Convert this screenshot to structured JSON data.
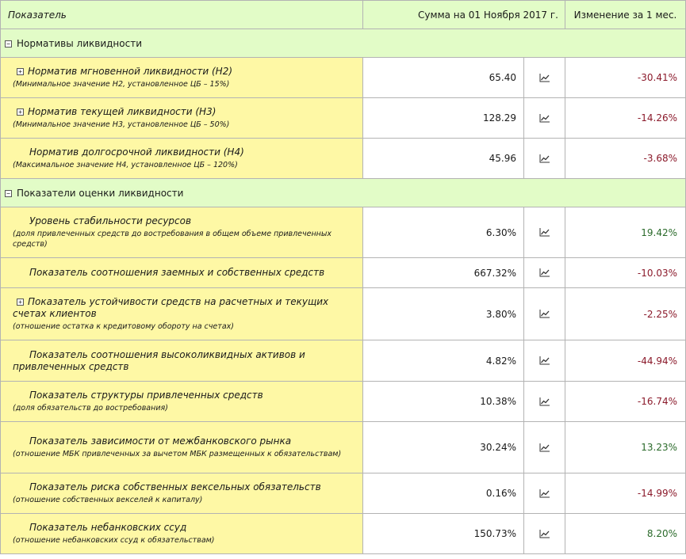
{
  "header": {
    "indicator": "Показатель",
    "sum": "Сумма на 01 Ноября 2017 г.",
    "change": "Изменение за 1 мес."
  },
  "sections": [
    {
      "title": "Нормативы ликвидности",
      "toggle": "⊟",
      "rows": [
        {
          "title": "Норматив мгновенной ликвидности (Н2)",
          "note": "(Минимальное значение Н2, установленное ЦБ – 15%)",
          "value": "65.40",
          "change": "-30.41%"
        },
        {
          "title": "Норматив текущей ликвидности (Н3)",
          "note": "(Минимальное значение Н3, установленное ЦБ – 50%)",
          "value": "128.29",
          "change": "-14.26%"
        },
        {
          "title": "Норматив долгосрочной ликвидности (Н4)",
          "note": "(Максимальное значение Н4, установленное ЦБ – 120%)",
          "value": "45.96",
          "change": "-3.68%"
        }
      ]
    },
    {
      "title": "Показатели оценки ликвидности",
      "toggle": "⊟",
      "rows": [
        {
          "title": "Уровень стабильности ресурсов",
          "note": "(доля привлеченных средств до востребования в общем объеме привлеченных средств)",
          "value": "6.30%",
          "change": "19.42%"
        },
        {
          "title": "Показатель соотношения заемных и собственных средств",
          "note": "",
          "value": "667.32%",
          "change": "-10.03%"
        },
        {
          "title": "Показатель устойчивости средств на расчетных и текущих счетах клиентов",
          "note": "(отношение остатка к кредитовому обороту на счетах)",
          "value": "3.80%",
          "change": "-2.25%"
        },
        {
          "title": "Показатель соотношения высоколиквидных активов и привлеченных средств",
          "note": "",
          "value": "4.82%",
          "change": "-44.94%"
        },
        {
          "title": "Показатель структуры привлеченных средств",
          "note": "(доля обязательств до востребования)",
          "value": "10.38%",
          "change": "-16.74%"
        },
        {
          "title": "Показатель зависимости от межбанковского рынка",
          "note": "(отношение МБК привлеченных за вычетом МБК размещенных к обязательствам)",
          "value": "30.24%",
          "change": "13.23%"
        },
        {
          "title": "Показатель риска собственных вексельных обязательств",
          "note": "(отношение собственных векселей к капиталу)",
          "value": "0.16%",
          "change": "-14.99%"
        },
        {
          "title": "Показатель небанковских ссуд",
          "note": "(отношение небанковских ссуд к обязательствам)",
          "value": "150.73%",
          "change": "8.20%"
        }
      ]
    }
  ],
  "icons": {
    "chart": "chart-line-icon",
    "expand": "expand-plus-icon",
    "collapse": "collapse-minus-icon"
  },
  "expand_symbol": "⊞",
  "colors": {
    "header_bg": "#e2fcc7",
    "name_bg": "#fef8a5",
    "negative": "#8b1a2b",
    "positive": "#2a6a2a",
    "border": "#b3b3b3"
  }
}
